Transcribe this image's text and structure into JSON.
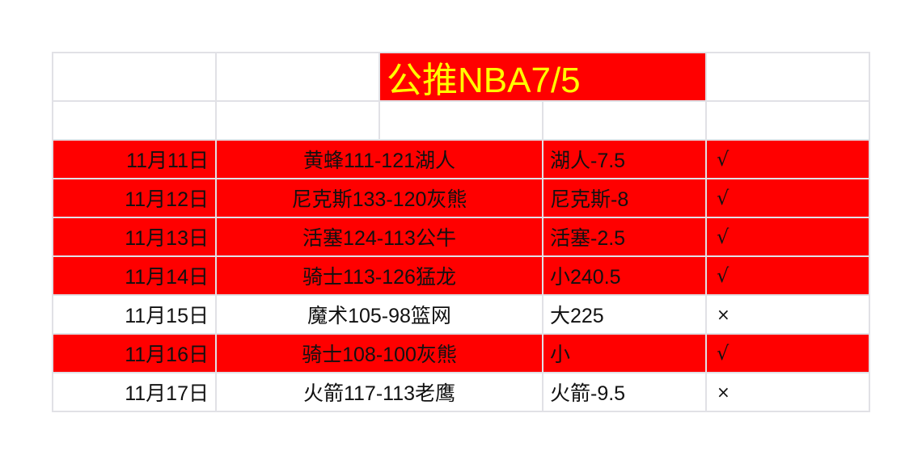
{
  "title": "公推NBA7/5",
  "colors": {
    "highlight": "#ff0000",
    "title_text": "#ffff00",
    "grid": "#e1e1e6"
  },
  "rows": [
    {
      "date": "11月11日",
      "match": "黄蜂111-121湖人",
      "pick": "湖人-7.5",
      "result": "√",
      "highlighted": true
    },
    {
      "date": "11月12日",
      "match": "尼克斯133-120灰熊",
      "pick": "尼克斯-8",
      "result": "√",
      "highlighted": true
    },
    {
      "date": "11月13日",
      "match": "活塞124-113公牛",
      "pick": "活塞-2.5",
      "result": "√",
      "highlighted": true
    },
    {
      "date": "11月14日",
      "match": "骑士113-126猛龙",
      "pick": "小240.5",
      "result": "√",
      "highlighted": true
    },
    {
      "date": "11月15日",
      "match": "魔术105-98篮网",
      "pick": "大225",
      "result": "×",
      "highlighted": false
    },
    {
      "date": "11月16日",
      "match": "骑士108-100灰熊",
      "pick": "小",
      "result": "√",
      "highlighted": true
    },
    {
      "date": "11月17日",
      "match": "火箭117-113老鹰",
      "pick": "火箭-9.5",
      "result": "×",
      "highlighted": false
    }
  ]
}
